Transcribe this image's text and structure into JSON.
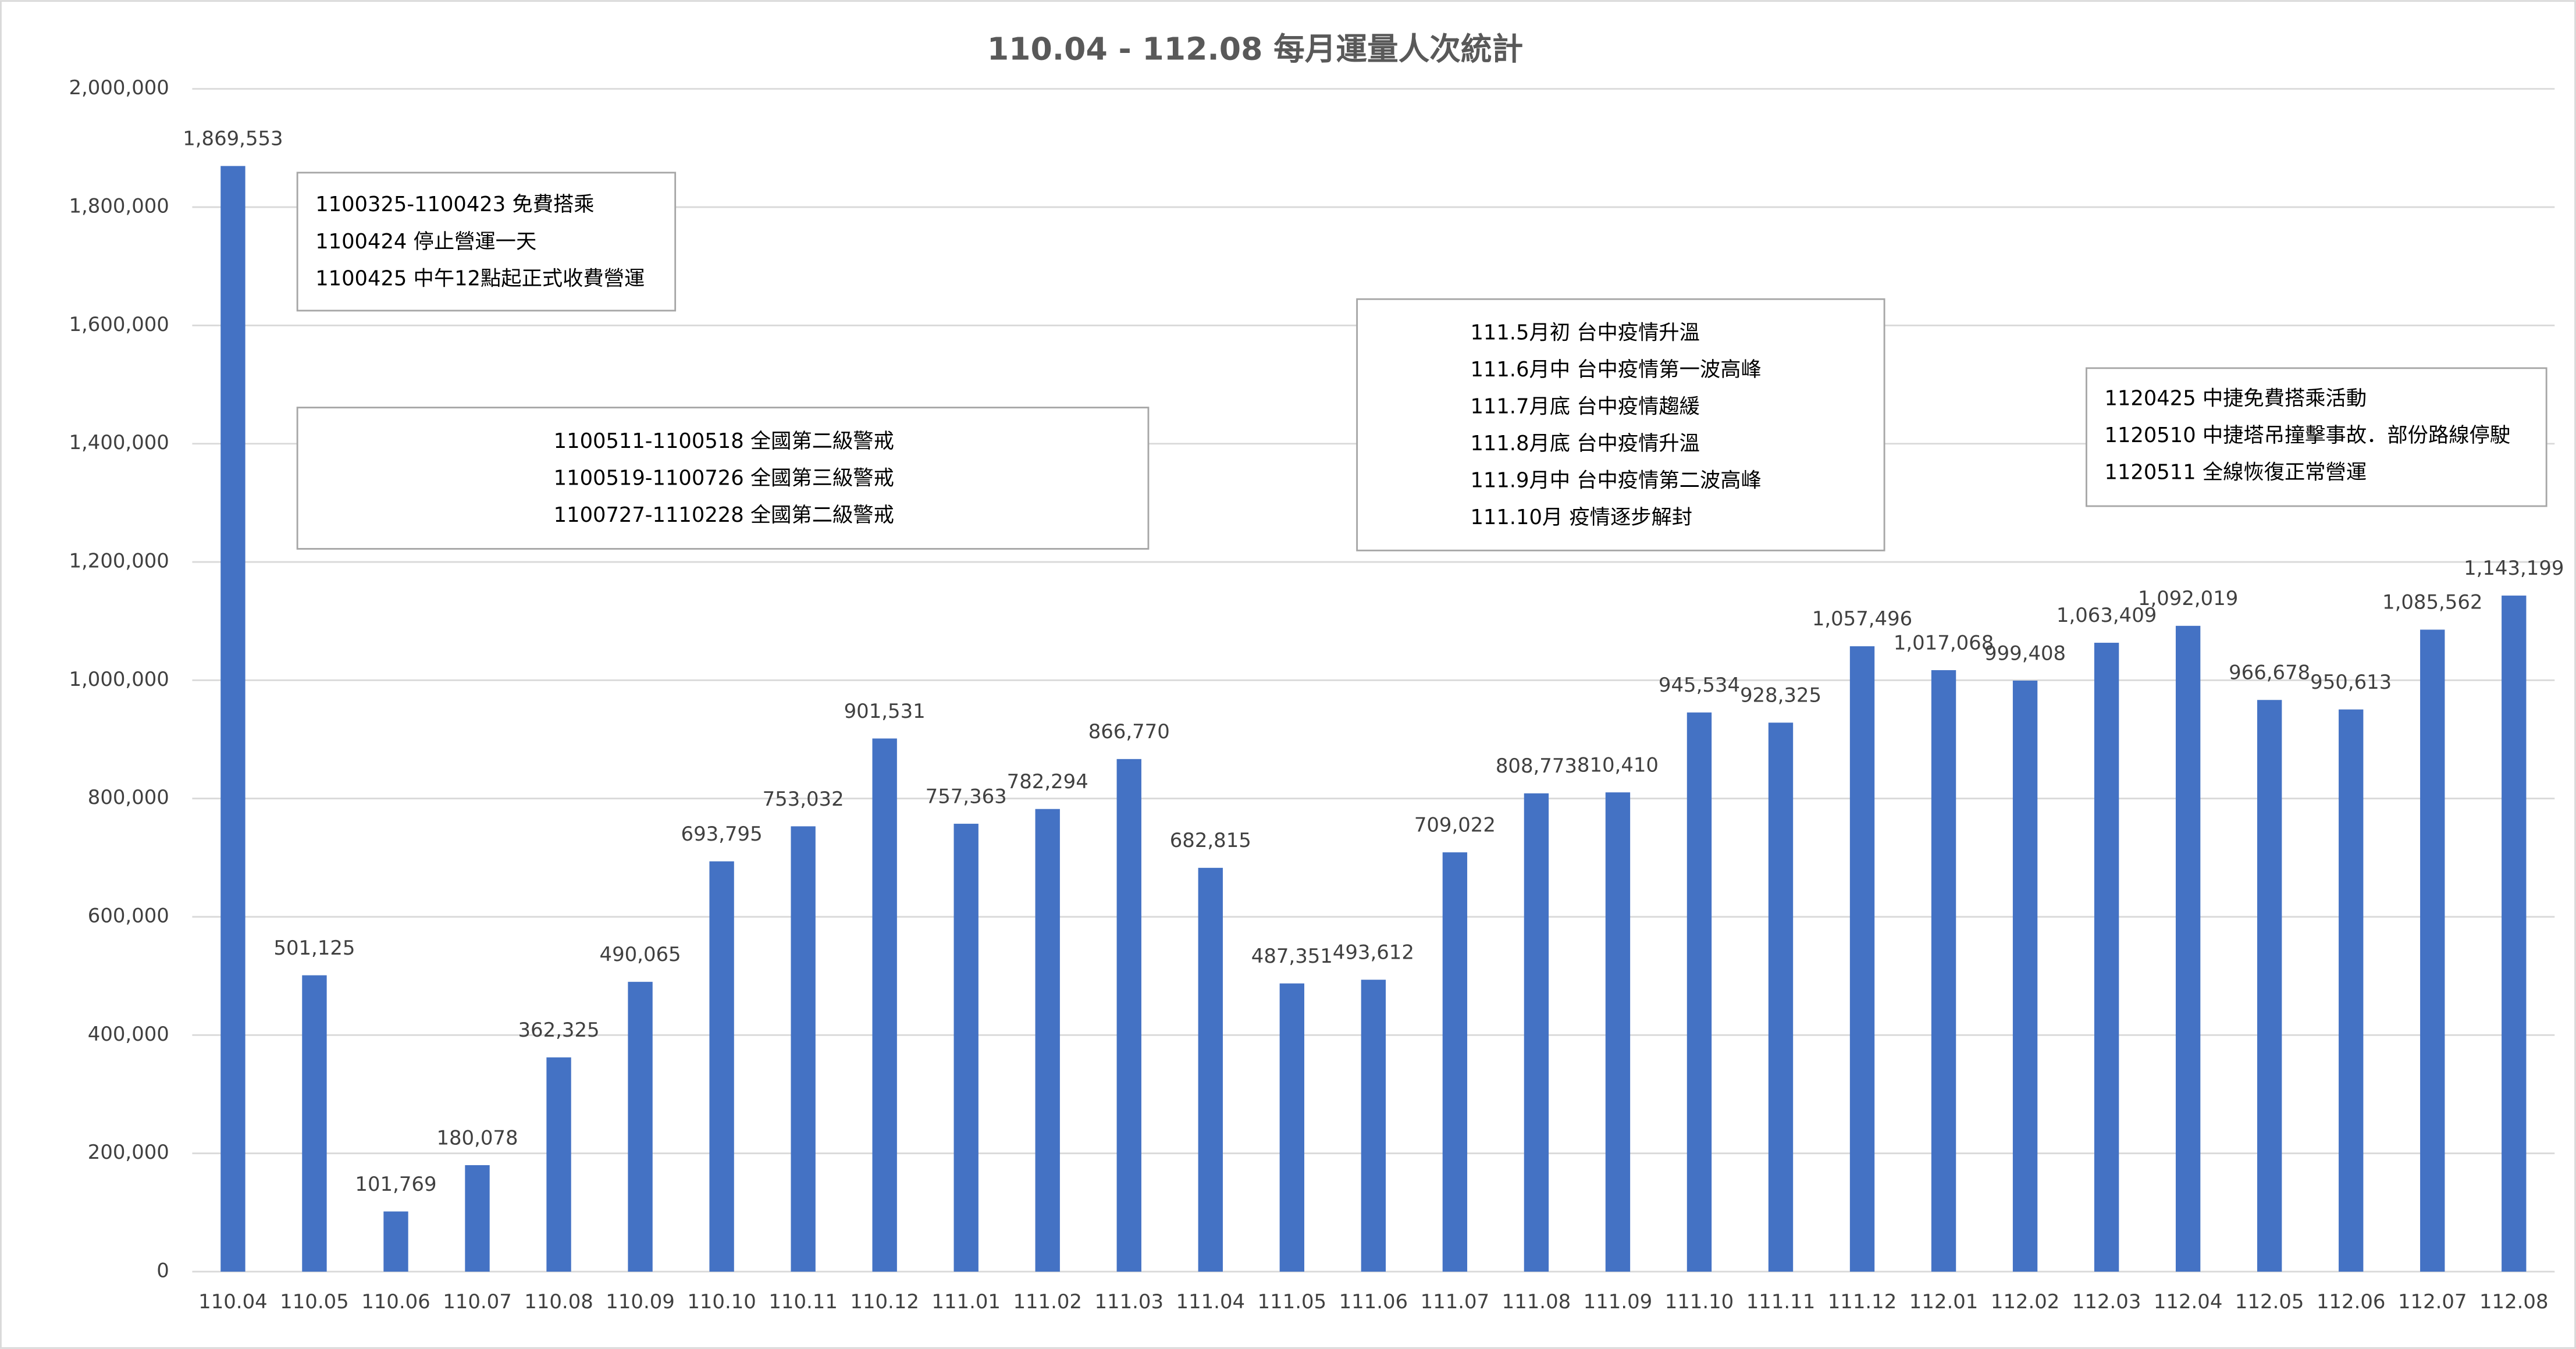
{
  "chart_data": {
    "type": "bar",
    "title": "110.04 - 112.08 每月運量人次統計",
    "categories": [
      "110.04",
      "110.05",
      "110.06",
      "110.07",
      "110.08",
      "110.09",
      "110.10",
      "110.11",
      "110.12",
      "111.01",
      "111.02",
      "111.03",
      "111.04",
      "111.05",
      "111.06",
      "111.07",
      "111.08",
      "111.09",
      "111.10",
      "111.11",
      "111.12",
      "112.01",
      "112.02",
      "112.03",
      "112.04",
      "112.05",
      "112.06",
      "112.07",
      "112.08"
    ],
    "values": [
      1869553,
      501125,
      101769,
      180078,
      362325,
      490065,
      693795,
      753032,
      901531,
      757363,
      782294,
      866770,
      682815,
      487351,
      493612,
      709022,
      808773,
      810410,
      945534,
      928325,
      1057496,
      1017068,
      999408,
      1063409,
      1092019,
      966678,
      950613,
      1085562,
      1143199
    ],
    "value_labels": [
      "1,869,553",
      "501,125",
      "101,769",
      "180,078",
      "362,325",
      "490,065",
      "693,795",
      "753,032",
      "901,531",
      "757,363",
      "782,294",
      "866,770",
      "682,815",
      "487,351",
      "493,612",
      "709,022",
      "808,773",
      "810,410",
      "945,534",
      "928,325",
      "1,057,496",
      "1,017,068",
      "999,408",
      "1,063,409",
      "1,092,019",
      "966,678",
      "950,613",
      "1,085,562",
      "1,143,199"
    ],
    "color": "#4472c4",
    "ylim": [
      0,
      2000000
    ],
    "yticks": [
      0,
      {
        "value": 200000,
        "label": "200,000"
      },
      {
        "value": 400000,
        "label": "400,000"
      },
      {
        "value": 600000,
        "label": "600,000"
      },
      {
        "value": 800000,
        "label": "800,000"
      },
      {
        "value": 1000000,
        "label": "1,000,000"
      },
      {
        "value": 1200000,
        "label": "1,200,000"
      },
      {
        "value": 1400000,
        "label": "1,400,000"
      },
      {
        "value": 1600000,
        "label": "1,600,000"
      },
      {
        "value": 1800000,
        "label": "1,800,000"
      },
      {
        "value": 2000000,
        "label": "2,000,000"
      }
    ],
    "grid": true,
    "annotations": [
      [
        "1100325-1100423 免費搭乘",
        "1100424 停止營運一天",
        "1100425 中午12點起正式收費營運"
      ],
      [
        "1100511-1100518 全國第二級警戒",
        "1100519-1100726 全國第三級警戒",
        "1100727-1110228 全國第二級警戒"
      ],
      [
        "111.5月初 台中疫情升溫",
        "111.6月中 台中疫情第一波高峰",
        "111.7月底 台中疫情趨緩",
        "111.8月底 台中疫情升溫",
        "111.9月中 台中疫情第二波高峰",
        "111.10月 疫情逐步解封"
      ],
      [
        "1120425 中捷免費搭乘活動",
        "1120510 中捷塔吊撞擊事故．部份路線停駛",
        "1120511 全線恢復正常營運"
      ]
    ]
  }
}
